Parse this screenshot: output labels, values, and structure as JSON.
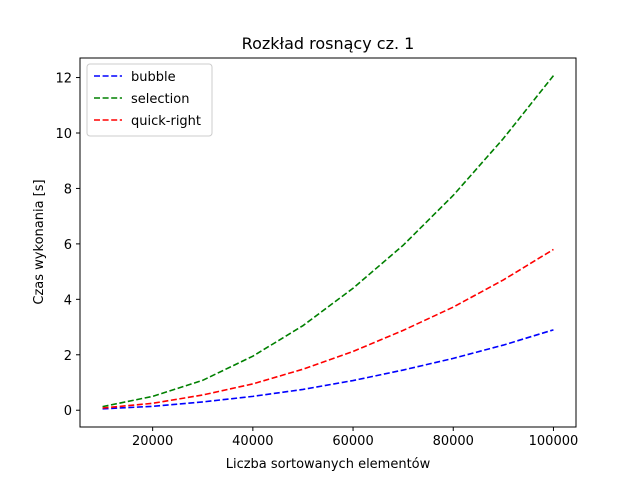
{
  "chart_data": {
    "type": "line",
    "title": "Rozkład rosnący cz. 1",
    "xlabel": "Liczba sortowanych elementów",
    "ylabel": "Czas wykonania [s]",
    "x": [
      10000,
      20000,
      30000,
      40000,
      50000,
      60000,
      70000,
      80000,
      90000,
      100000
    ],
    "xlim": [
      10000,
      100000
    ],
    "ylim": [
      0,
      12.1
    ],
    "xticks": [
      20000,
      40000,
      60000,
      80000,
      100000
    ],
    "xtick_labels": [
      "20000",
      "40000",
      "60000",
      "80000",
      "100000"
    ],
    "yticks": [
      0,
      2,
      4,
      6,
      8,
      10,
      12
    ],
    "ytick_labels": [
      "0",
      "2",
      "4",
      "6",
      "8",
      "10",
      "12"
    ],
    "grid": false,
    "legend": "top-left",
    "line_style": "dashed",
    "series": [
      {
        "name": "bubble",
        "color": "#0000ff",
        "values": [
          0.05,
          0.14,
          0.3,
          0.5,
          0.75,
          1.07,
          1.45,
          1.87,
          2.35,
          2.9
        ]
      },
      {
        "name": "selection",
        "color": "#008000",
        "values": [
          0.13,
          0.5,
          1.08,
          1.95,
          3.05,
          4.4,
          5.95,
          7.75,
          9.8,
          12.07
        ]
      },
      {
        "name": "quick-right",
        "color": "#ff0000",
        "values": [
          0.08,
          0.25,
          0.55,
          0.95,
          1.48,
          2.12,
          2.88,
          3.72,
          4.7,
          5.8
        ]
      }
    ]
  }
}
